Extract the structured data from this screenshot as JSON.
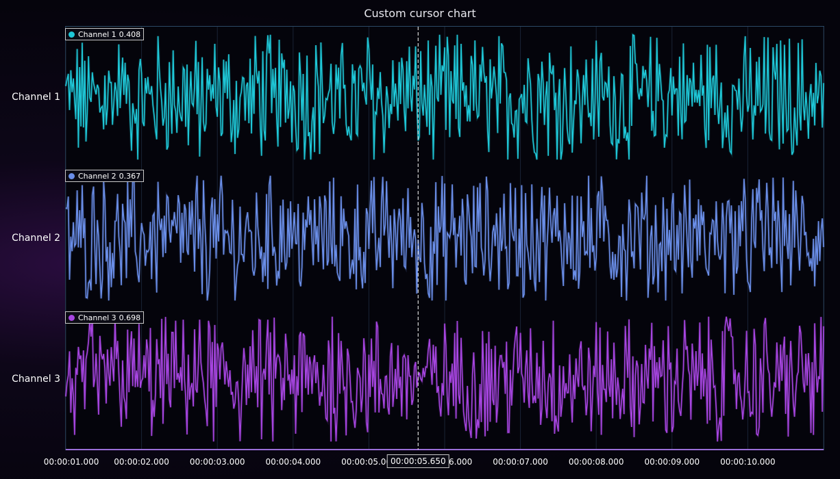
{
  "chart_data": {
    "type": "line",
    "title": "Custom cursor chart",
    "xlabel": "",
    "ylabel": "",
    "x_range_seconds": [
      1.0,
      11.0
    ],
    "x_tick_labels": [
      "00:00:01.000",
      "00:00:02.000",
      "00:00:03.000",
      "00:00:04.000",
      "00:00:05.000",
      "00:00:06.000",
      "00:00:07.000",
      "00:00:08.000",
      "00:00:09.000",
      "00:00:10.000"
    ],
    "y_range_per_channel": [
      0,
      1
    ],
    "grid": true,
    "legend": "per-channel, top-left of each lane",
    "cursor": {
      "x_label": "00:00:05.650",
      "x_seconds": 5.65
    },
    "series": [
      {
        "name": "Channel 1",
        "color": "#1fc8d8",
        "cursor_value": "0.408",
        "summary": "dense random noise between 0 and 1, ~10 samples per 0.1 s"
      },
      {
        "name": "Channel 2",
        "color": "#6a8ee8",
        "cursor_value": "0.367",
        "summary": "dense random noise between 0 and 1"
      },
      {
        "name": "Channel 3",
        "color": "#a645e0",
        "cursor_value": "0.698",
        "summary": "dense random noise between 0 and 1"
      }
    ]
  },
  "colors": {
    "background": "#05040c",
    "grid": "#1a2436",
    "axis": "#2c4a66",
    "cursor": "#d9d9d9"
  }
}
